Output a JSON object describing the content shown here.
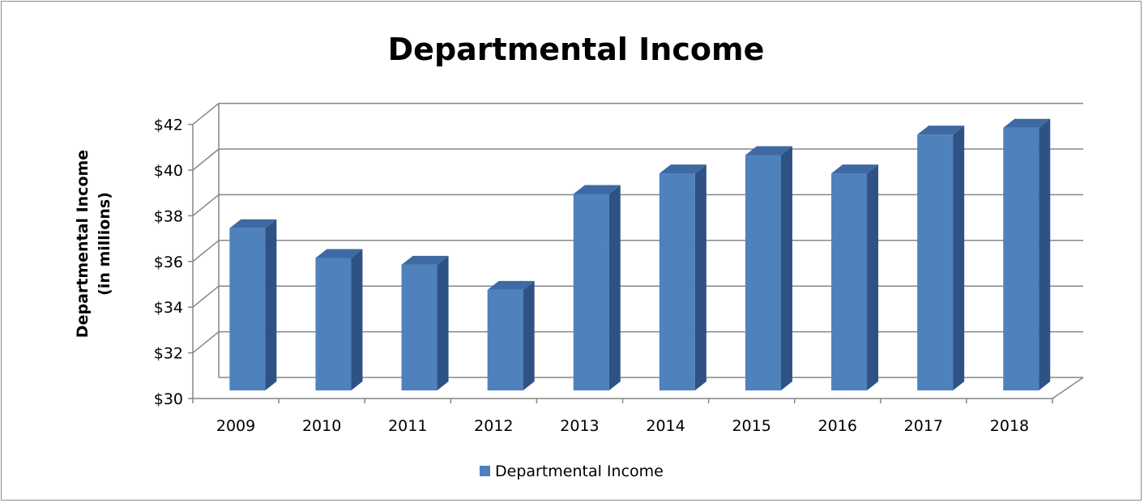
{
  "chart_data": {
    "type": "bar",
    "style": "3d-column",
    "title": "Departmental Income",
    "ylabel_lines": [
      "Departmental Income",
      "(in millions)"
    ],
    "xlabel": "",
    "categories": [
      "2009",
      "2010",
      "2011",
      "2012",
      "2013",
      "2014",
      "2015",
      "2016",
      "2017",
      "2018"
    ],
    "series": [
      {
        "name": "Departmental Income",
        "values": [
          37.1,
          35.8,
          35.5,
          34.4,
          38.6,
          39.5,
          40.3,
          39.5,
          41.2,
          41.5
        ]
      }
    ],
    "ylim": [
      30,
      42
    ],
    "yticks": [
      30,
      32,
      34,
      36,
      38,
      40,
      42
    ],
    "ytick_labels": [
      "$30",
      "$32",
      "$34",
      "$36",
      "$38",
      "$40",
      "$42"
    ],
    "grid": true,
    "legend_position": "bottom",
    "colors": {
      "bar_front": "#4f81bd",
      "bar_side": "#2f5284",
      "bar_top": "#3e6aa3",
      "grid": "#868686"
    }
  }
}
